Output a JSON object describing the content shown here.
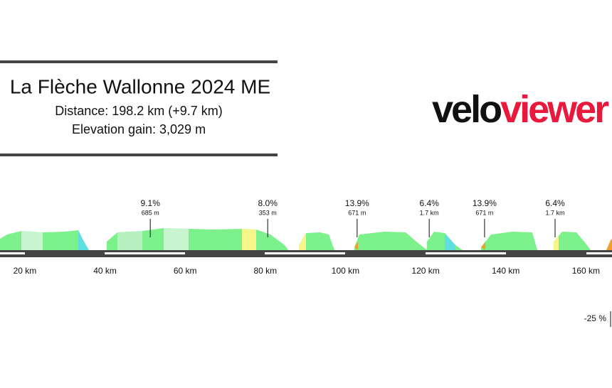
{
  "header": {
    "title": "La Flèche Wallonne 2024 ME",
    "distance": "Distance: 198.2 km (+9.7 km)",
    "elevation_gain": "Elevation gain: 3,029 m"
  },
  "logo": {
    "first": "velo",
    "second": "viewer"
  },
  "chart_data": {
    "type": "profile",
    "xlim": [
      13.8,
      166.5
    ],
    "xticks": [
      {
        "value": 20,
        "label": "20 km"
      },
      {
        "value": 40,
        "label": "40 km"
      },
      {
        "value": 60,
        "label": "60 km"
      },
      {
        "value": 80,
        "label": "80 km"
      },
      {
        "value": 100,
        "label": "100 km"
      },
      {
        "value": 120,
        "label": "120 km"
      },
      {
        "value": 140,
        "label": "140 km"
      },
      {
        "value": 160,
        "label": "160 km"
      }
    ],
    "climbs": [
      {
        "x": 51.3,
        "gradient": "9.1%",
        "length": "685 m"
      },
      {
        "x": 80.6,
        "gradient": "8.0%",
        "length": "353 m"
      },
      {
        "x": 102.9,
        "gradient": "13.9%",
        "length": "671 m"
      },
      {
        "x": 120.9,
        "gradient": "6.4%",
        "length": "1.7 km"
      },
      {
        "x": 134.7,
        "gradient": "13.9%",
        "length": "671 m"
      },
      {
        "x": 152.3,
        "gradient": "6.4%",
        "length": "1.7 km"
      }
    ],
    "legend_min": {
      "value": -25,
      "label": "-25 %"
    }
  }
}
